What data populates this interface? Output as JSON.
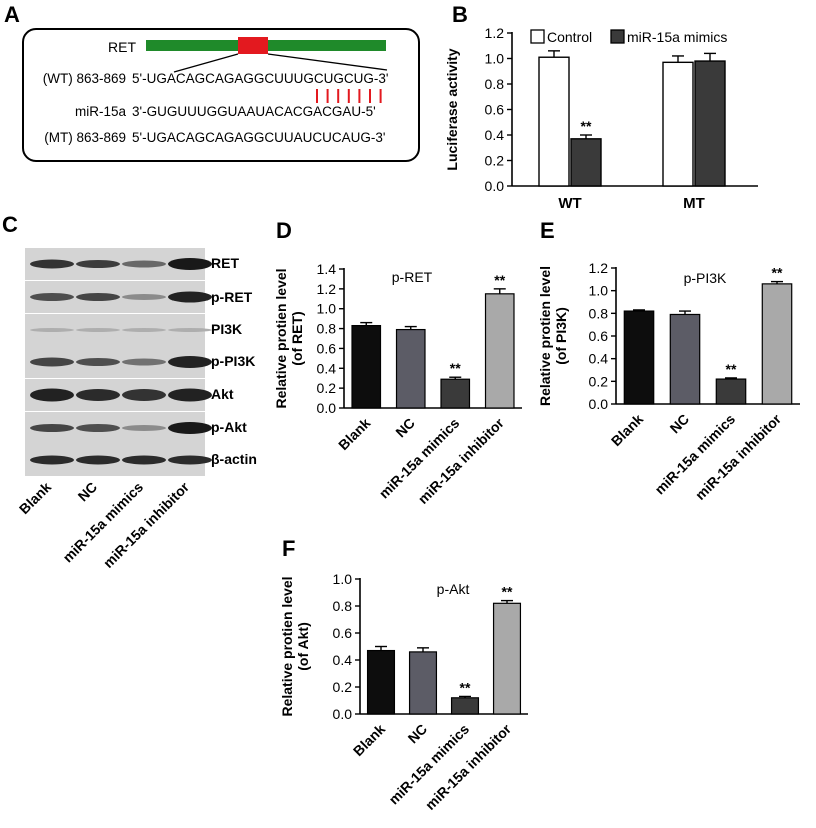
{
  "panel_letters": {
    "a": "A",
    "b": "B",
    "c": "C",
    "d": "D",
    "e": "E",
    "f": "F"
  },
  "panelA": {
    "gene": "RET",
    "wt_label": "(WT) 863-869",
    "wt_seq": "5'-UGACAGCAGAGGCUUUGCUGCUG-3'",
    "mir_label": "miR-15a",
    "mir_seq": "3'-GUGUUUGGUAAUACACGACGAU-5'",
    "mt_label": "(MT) 863-869",
    "mt_seq": "5'-UGACAGCAGAGGCUUAUCUCAUG-3'",
    "colors": {
      "gene_bar": "#1f8a2a",
      "site": "#e3191f",
      "pairing": "#e3191f"
    }
  },
  "panelC": {
    "blot_rows": [
      "RET",
      "p-RET",
      "PI3K",
      "p-PI3K",
      "Akt",
      "p-Akt",
      "β-actin"
    ],
    "lanes": [
      "Blank",
      "NC",
      "miR-15a mimics",
      "miR-15a inhibitor"
    ]
  },
  "chart_data": [
    {
      "id": "B",
      "type": "bar",
      "title": "",
      "categories": [
        "WT",
        "MT"
      ],
      "series": [
        {
          "name": "Control",
          "values": [
            1.01,
            0.97
          ],
          "errors": [
            0.05,
            0.05
          ],
          "color": "#ffffff"
        },
        {
          "name": "miR-15a mimics",
          "values": [
            0.37,
            0.98
          ],
          "errors": [
            0.03,
            0.06
          ],
          "color": "#3a3a3a"
        }
      ],
      "significance": [
        {
          "category": "WT",
          "series": "miR-15a mimics",
          "label": "**"
        }
      ],
      "ylabel": "Luciferase activity",
      "ylim": [
        0,
        1.2
      ],
      "yticks": [
        0.0,
        0.2,
        0.4,
        0.6,
        0.8,
        1.0,
        1.2
      ],
      "ytick_labels": [
        "0.0",
        "0.2",
        "0.4",
        "0.6",
        "0.8",
        "1.0",
        "1.2"
      ],
      "legend_position": "top",
      "grid": false
    },
    {
      "id": "D",
      "type": "bar",
      "title": "p-RET",
      "categories": [
        "Blank",
        "NC",
        "miR-15a mimics",
        "miR-15a inhibitor"
      ],
      "values": [
        0.83,
        0.79,
        0.29,
        1.15
      ],
      "errors": [
        0.03,
        0.03,
        0.02,
        0.05
      ],
      "colors": [
        "#0d0d0d",
        "#5c5c66",
        "#3a3a3a",
        "#a9a9a9"
      ],
      "significance": [
        "",
        "",
        "**",
        "**"
      ],
      "ylabel": "Relative protien level\n(of RET)",
      "ylim": [
        0,
        1.4
      ],
      "yticks": [
        0.0,
        0.2,
        0.4,
        0.6,
        0.8,
        1.0,
        1.2,
        1.4
      ],
      "ytick_labels": [
        "0.0",
        "0.2",
        "0.4",
        "0.6",
        "0.8",
        "1.0",
        "1.2",
        "1.4"
      ],
      "grid": false
    },
    {
      "id": "E",
      "type": "bar",
      "title": "p-PI3K",
      "categories": [
        "Blank",
        "NC",
        "miR-15a mimics",
        "miR-15a inhibitor"
      ],
      "values": [
        0.82,
        0.79,
        0.22,
        1.06
      ],
      "errors": [
        0.01,
        0.03,
        0.01,
        0.02
      ],
      "colors": [
        "#0d0d0d",
        "#5c5c66",
        "#3a3a3a",
        "#a9a9a9"
      ],
      "significance": [
        "",
        "",
        "**",
        "**"
      ],
      "ylabel": "Relative protien level\n(of PI3K)",
      "ylim": [
        0,
        1.2
      ],
      "yticks": [
        0.0,
        0.2,
        0.4,
        0.6,
        0.8,
        1.0,
        1.2
      ],
      "ytick_labels": [
        "0.0",
        "0.2",
        "0.4",
        "0.6",
        "0.8",
        "1.0",
        "1.2"
      ],
      "grid": false
    },
    {
      "id": "F",
      "type": "bar",
      "title": "p-Akt",
      "categories": [
        "Blank",
        "NC",
        "miR-15a mimics",
        "miR-15a inhibitor"
      ],
      "values": [
        0.47,
        0.46,
        0.12,
        0.82
      ],
      "errors": [
        0.03,
        0.03,
        0.01,
        0.02
      ],
      "colors": [
        "#0d0d0d",
        "#5c5c66",
        "#3a3a3a",
        "#a9a9a9"
      ],
      "significance": [
        "",
        "",
        "**",
        "**"
      ],
      "ylabel": "Relative protien level\n(of Akt)",
      "ylim": [
        0,
        1.0
      ],
      "yticks": [
        0.0,
        0.2,
        0.4,
        0.6,
        0.8,
        1.0
      ],
      "ytick_labels": [
        "0.0",
        "0.2",
        "0.4",
        "0.6",
        "0.8",
        "1.0"
      ],
      "grid": false
    }
  ]
}
